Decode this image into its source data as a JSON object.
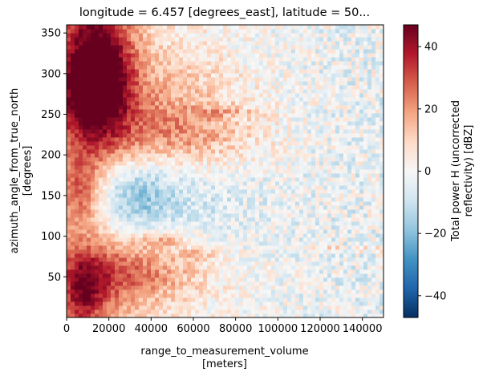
{
  "chart_data": {
    "type": "heatmap",
    "title": "longitude = 6.457 [degrees_east], latitude = 50...",
    "xlabel": "range_to_measurement_volume",
    "xlabel_unit": "[meters]",
    "ylabel": "azimuth_angle_from_true_north",
    "ylabel_unit": "[degrees]",
    "xlim": [
      0,
      150000
    ],
    "ylim": [
      0,
      360
    ],
    "x_ticks": [
      0,
      20000,
      40000,
      60000,
      80000,
      100000,
      120000,
      140000
    ],
    "x_tick_labels": [
      "0",
      "20000",
      "40000",
      "60000",
      "80000",
      "100000",
      "120000",
      "140000"
    ],
    "y_ticks": [
      50,
      100,
      150,
      200,
      250,
      300,
      350
    ],
    "y_tick_labels": [
      "50",
      "100",
      "150",
      "200",
      "250",
      "300",
      "350"
    ],
    "colorbar": {
      "label_line1": "Total power H (uncorrected",
      "label_line2": "reflectivity) [dBZ]",
      "range": [
        -47,
        47
      ],
      "ticks": [
        -40,
        -20,
        0,
        20,
        40
      ],
      "tick_labels": [
        "−40",
        "−20",
        "0",
        "20",
        "40"
      ],
      "colormap": "RdBu_r",
      "colormap_stops": [
        "#053061",
        "#2166ac",
        "#4393c3",
        "#92c5de",
        "#d1e5f0",
        "#f7f7f7",
        "#fddbc7",
        "#f4a582",
        "#d6604d",
        "#b2182b",
        "#67001f"
      ]
    }
  }
}
